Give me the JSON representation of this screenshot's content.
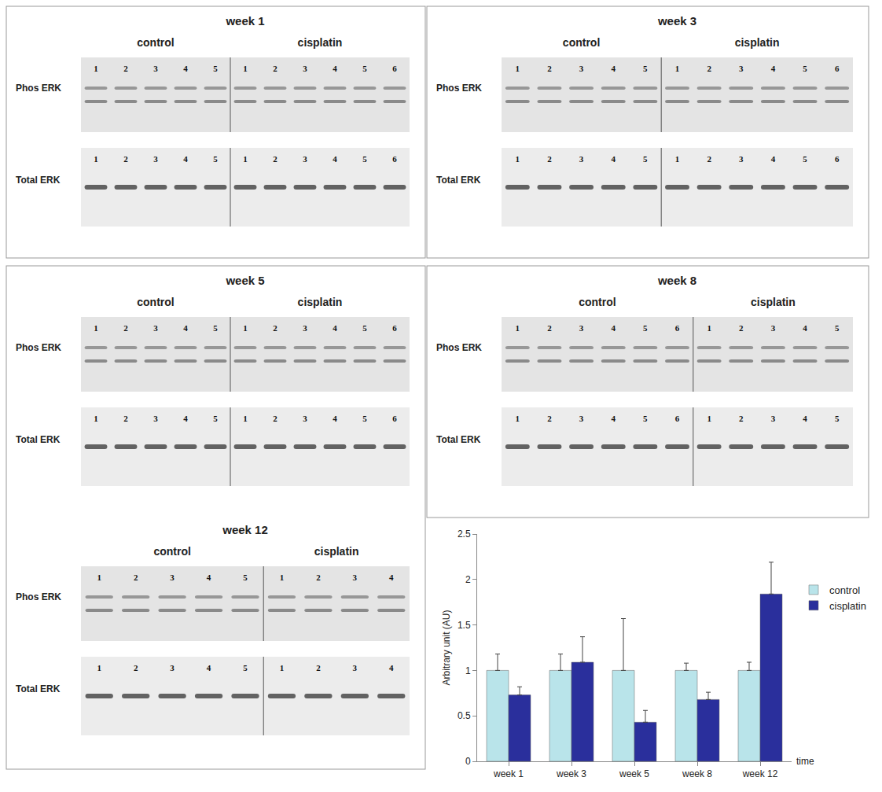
{
  "blots": [
    {
      "title": "week 1",
      "rows": [
        "Phos ERK",
        "Total ERK"
      ],
      "groups": [
        {
          "label": "control",
          "lanes": [
            1,
            2,
            3,
            4,
            5
          ]
        },
        {
          "label": "cisplatin",
          "lanes": [
            1,
            2,
            3,
            4,
            5,
            6
          ]
        }
      ]
    },
    {
      "title": "week 3",
      "rows": [
        "Phos ERK",
        "Total ERK"
      ],
      "groups": [
        {
          "label": "control",
          "lanes": [
            1,
            2,
            3,
            4,
            5
          ]
        },
        {
          "label": "cisplatin",
          "lanes": [
            1,
            2,
            3,
            4,
            5,
            6
          ]
        }
      ]
    },
    {
      "title": "week 5",
      "rows": [
        "Phos ERK",
        "Total ERK"
      ],
      "groups": [
        {
          "label": "control",
          "lanes": [
            1,
            2,
            3,
            4,
            5
          ]
        },
        {
          "label": "cisplatin",
          "lanes": [
            1,
            2,
            3,
            4,
            5,
            6
          ]
        }
      ]
    },
    {
      "title": "week 8",
      "rows": [
        "Phos ERK",
        "Total ERK"
      ],
      "groups": [
        {
          "label": "control",
          "lanes": [
            1,
            2,
            3,
            4,
            5,
            6
          ]
        },
        {
          "label": "cisplatin",
          "lanes": [
            1,
            2,
            3,
            4,
            5
          ]
        }
      ]
    },
    {
      "title": "week 12",
      "rows": [
        "Phos ERK",
        "Total ERK"
      ],
      "groups": [
        {
          "label": "control",
          "lanes": [
            1,
            2,
            3,
            4,
            5
          ]
        },
        {
          "label": "cisplatin",
          "lanes": [
            1,
            2,
            3,
            4
          ]
        }
      ]
    }
  ],
  "chart_data": {
    "type": "bar",
    "y_label": "Arbitrary unit (AU)",
    "x_label": "time",
    "categories": [
      "week 1",
      "week 3",
      "week 5",
      "week 8",
      "week 12"
    ],
    "series": [
      {
        "name": "control",
        "color": "#b9e4ea",
        "values": [
          1,
          1,
          1,
          1,
          1
        ],
        "errors": [
          0.18,
          0.18,
          0.57,
          0.08,
          0.09
        ]
      },
      {
        "name": "cisplatin",
        "color": "#2a2f9c",
        "values": [
          0.73,
          1.09,
          0.43,
          0.68,
          1.84
        ],
        "errors": [
          0.09,
          0.28,
          0.13,
          0.08,
          0.35
        ]
      }
    ],
    "ylim": [
      0,
      2.5
    ],
    "yticks": [
      0,
      0.5,
      1,
      1.5,
      2,
      2.5
    ],
    "grid": false,
    "legend": "right"
  }
}
